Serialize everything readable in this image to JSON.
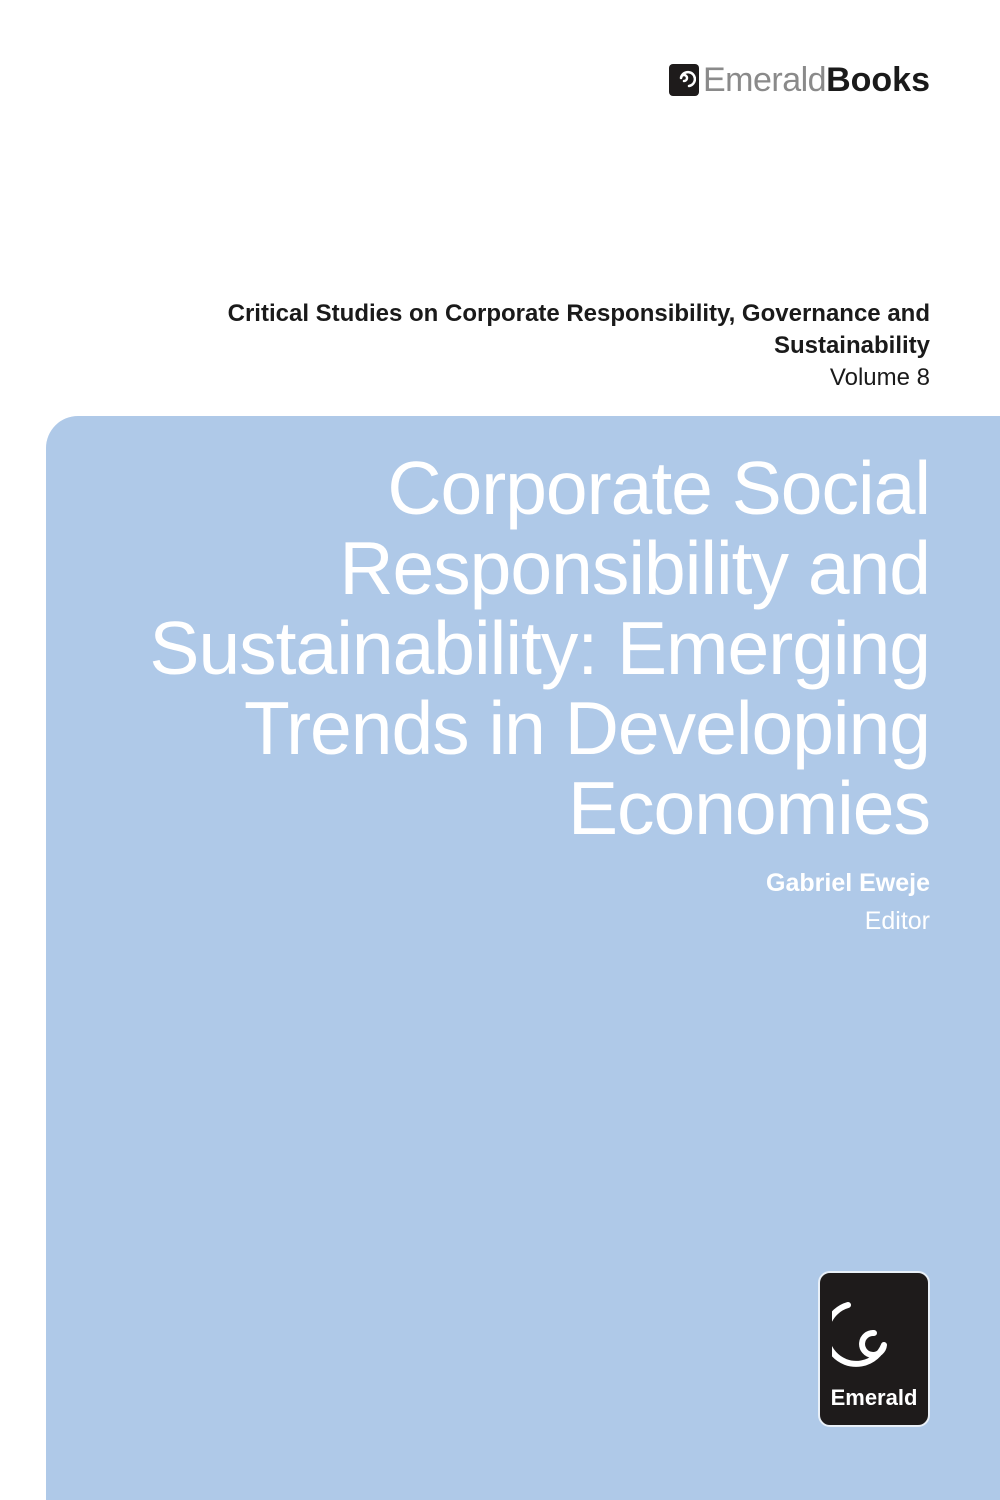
{
  "publisher": {
    "brand_light": "Emerald",
    "brand_bold": "Books",
    "logo_text": "Emerald"
  },
  "series": {
    "title": "Critical Studies on Corporate Responsibility, Governance and Sustainability",
    "volume": "Volume 8"
  },
  "book": {
    "title_lines": [
      "Corporate Social",
      "Responsibility and",
      "Sustainability: Emerging",
      "Trends in Developing",
      "Economies"
    ],
    "editor_name": "Gabriel Eweje",
    "editor_role": "Editor"
  },
  "colors": {
    "panel": "#afc9e8",
    "logo_bg": "#1e1b1b",
    "text_dark": "#1a1a1a",
    "text_light": "#ffffff"
  }
}
